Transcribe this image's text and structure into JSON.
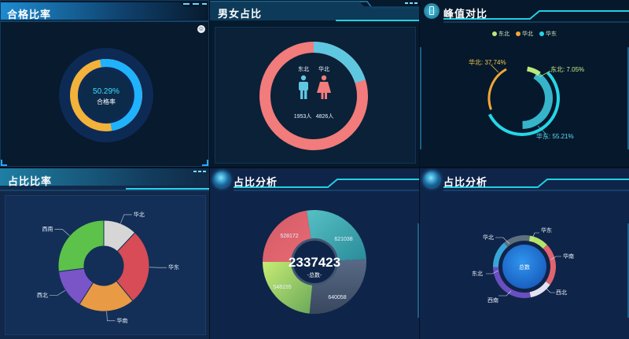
{
  "panel1": {
    "title": "合格比率",
    "percent_label": "50.29%",
    "center_caption": "合格率",
    "corner_badge": "☺"
  },
  "panel2": {
    "title": "男女占比",
    "male_label": "东北",
    "female_label": "华北",
    "male_count": "1953人",
    "female_count": "4826人",
    "colors": {
      "male": "#5fc8e0",
      "female": "#f27b7b"
    }
  },
  "panel3": {
    "title": "峰值对比",
    "legend": [
      "东北",
      "华北",
      "华东"
    ],
    "labels": {
      "northeast": "东北: 7.05%",
      "north": "华北: 37.74%",
      "east": "华东: 55.21%"
    }
  },
  "panel4": {
    "title": "占比比率",
    "labels": [
      "华北",
      "华东",
      "华南",
      "西北",
      "西南"
    ]
  },
  "panel5": {
    "title": "占比分析",
    "total": "2337423",
    "total_caption": "-总数-",
    "values": [
      "528172",
      "621038",
      "548155",
      "640058"
    ]
  },
  "panel6": {
    "title": "占比分析",
    "center": "总数",
    "labels": [
      "华东",
      "华南",
      "西北",
      "西南",
      "东北",
      "华北"
    ]
  },
  "chart_data": [
    {
      "type": "pie",
      "labels": [
        "合格率"
      ],
      "values": [
        50.29
      ],
      "title": "合格比率"
    },
    {
      "type": "pie",
      "categories": [
        "东北",
        "华北"
      ],
      "values": [
        1953,
        4826
      ],
      "title": "男女占比"
    },
    {
      "type": "pie",
      "categories": [
        "东北",
        "华北",
        "华东"
      ],
      "values": [
        7.05,
        37.74,
        55.21
      ],
      "title": "峰值对比"
    },
    {
      "type": "pie",
      "categories": [
        "华北",
        "华东",
        "华南",
        "西北",
        "西南"
      ],
      "values": [
        12,
        27,
        20,
        14,
        27
      ],
      "title": "占比比率"
    },
    {
      "type": "pie",
      "categories": [
        "528172",
        "621038",
        "548155",
        "640058"
      ],
      "values": [
        528172,
        621038,
        548155,
        640058
      ],
      "title": "占比分析",
      "total": 2337423
    },
    {
      "type": "pie",
      "categories": [
        "华东",
        "华南",
        "西北",
        "西南",
        "东北",
        "华北"
      ],
      "values": [
        10,
        22,
        12,
        28,
        14,
        14
      ],
      "title": "占比分析"
    }
  ]
}
